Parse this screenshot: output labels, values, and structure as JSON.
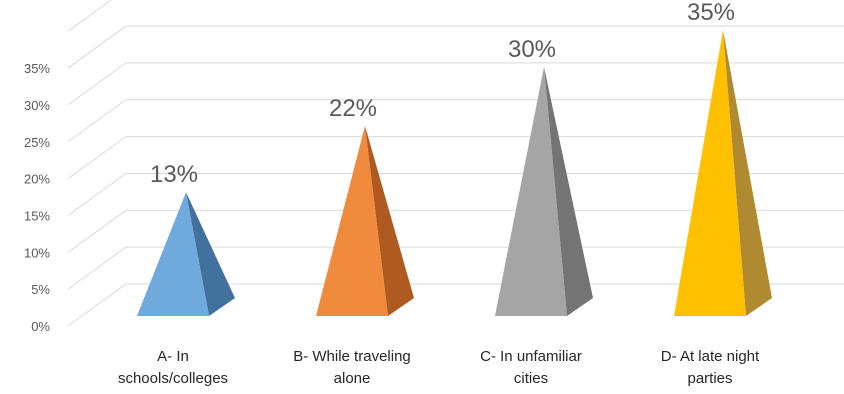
{
  "chart_data": {
    "type": "bar",
    "style": "3d-pyramid",
    "categories": [
      [
        "A- In",
        "schools/colleges"
      ],
      [
        "B- While traveling",
        "alone"
      ],
      [
        "C- In unfamiliar",
        "cities"
      ],
      [
        "D- At late night",
        "parties"
      ]
    ],
    "values": [
      13,
      22,
      30,
      35
    ],
    "data_labels": [
      "13%",
      "22%",
      "30%",
      "35%"
    ],
    "y_ticks": [
      "0%",
      "5%",
      "10%",
      "15%",
      "20%",
      "25%",
      "30%",
      "35%"
    ],
    "ylim": [
      0,
      35
    ],
    "grid": true,
    "legend": "none",
    "colors": [
      {
        "front": "#70a9dc",
        "side": "#41719c"
      },
      {
        "front": "#f08b3d",
        "side": "#ae5a21"
      },
      {
        "front": "#a5a5a5",
        "side": "#747474"
      },
      {
        "front": "#ffc000",
        "side": "#b08a30"
      }
    ]
  }
}
